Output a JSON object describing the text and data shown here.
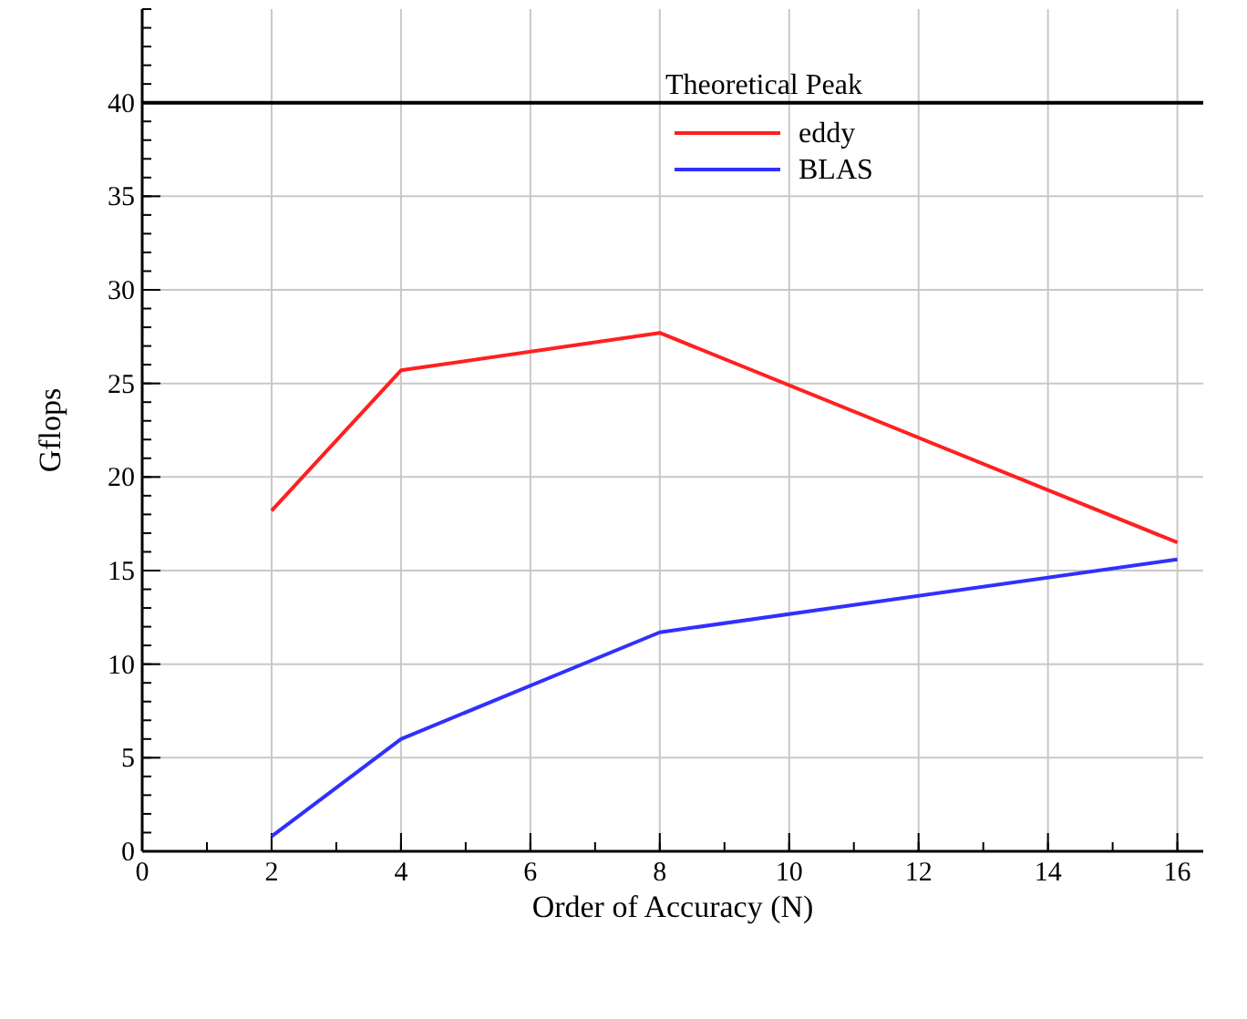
{
  "chart_data": {
    "type": "line",
    "xlabel": "Order of Accuracy (N)",
    "ylabel": "Gflops",
    "xlim": [
      0,
      16.4
    ],
    "ylim": [
      0,
      45
    ],
    "xticks": [
      0,
      2,
      4,
      6,
      8,
      10,
      12,
      14,
      16
    ],
    "yticks": [
      0,
      5,
      10,
      15,
      20,
      25,
      30,
      35,
      40
    ],
    "grid": true,
    "legend": "top right",
    "marker": "none",
    "line_style": "solid",
    "ref_lines": [
      {
        "axis": "y",
        "value": 40,
        "label": "Theoretical Peak",
        "color": "#000000"
      }
    ],
    "series": [
      {
        "name": "eddy",
        "color": "#ff2020",
        "x": [
          2,
          4,
          8,
          16
        ],
        "values": [
          18.2,
          25.7,
          27.7,
          16.5
        ]
      },
      {
        "name": "BLAS",
        "color": "#3030ff",
        "x": [
          2,
          4,
          8,
          16
        ],
        "values": [
          0.8,
          6,
          11.7,
          15.6
        ]
      }
    ]
  }
}
